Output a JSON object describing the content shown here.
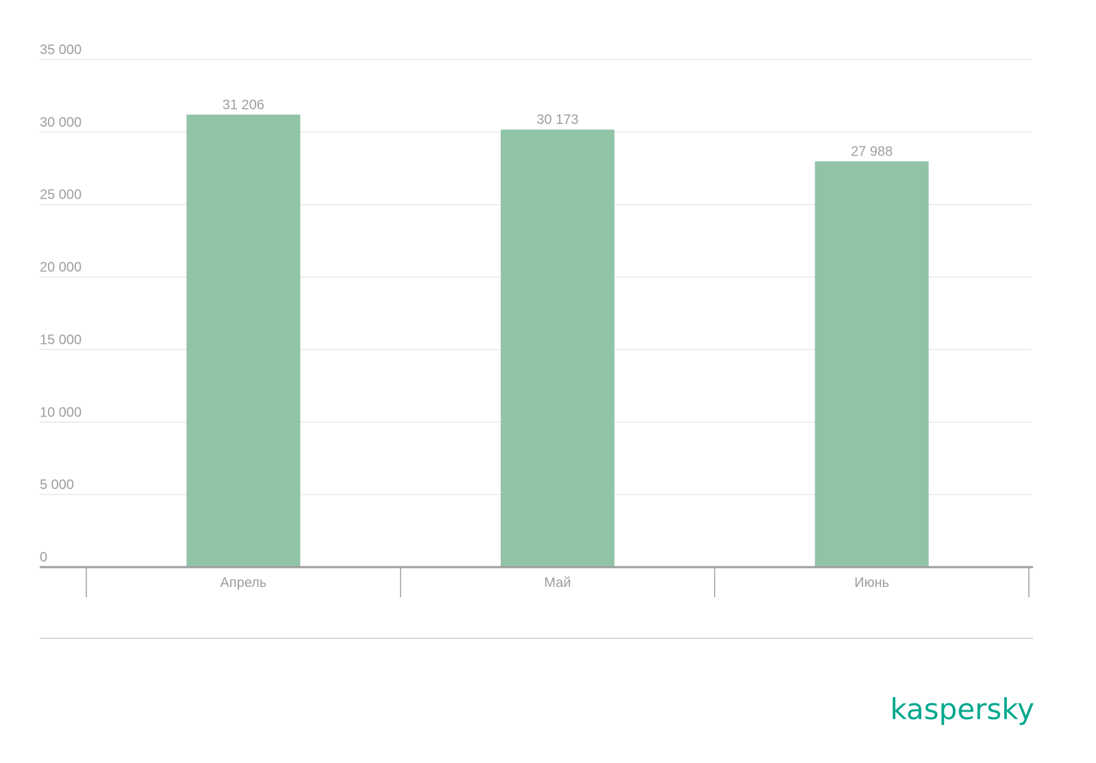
{
  "chart_data": {
    "type": "bar",
    "categories": [
      "Апрель",
      "Май",
      "Июнь"
    ],
    "values": [
      31206,
      30173,
      27988
    ],
    "value_labels": [
      "31 206",
      "30 173",
      "27 988"
    ],
    "color": "#91c4a7",
    "ylim": [
      0,
      35000
    ],
    "yticks": [
      0,
      {
        "value": 5000,
        "label": "5 000"
      },
      {
        "value": 10000,
        "label": "10 000"
      },
      {
        "value": 15000,
        "label": "15 000"
      },
      {
        "value": 20000,
        "label": "20 000"
      },
      {
        "value": 25000,
        "label": "25 000"
      },
      {
        "value": 30000,
        "label": "30 000"
      },
      {
        "value": 35000,
        "label": "35 000"
      }
    ],
    "grid": true
  },
  "logo": "kaspersky"
}
